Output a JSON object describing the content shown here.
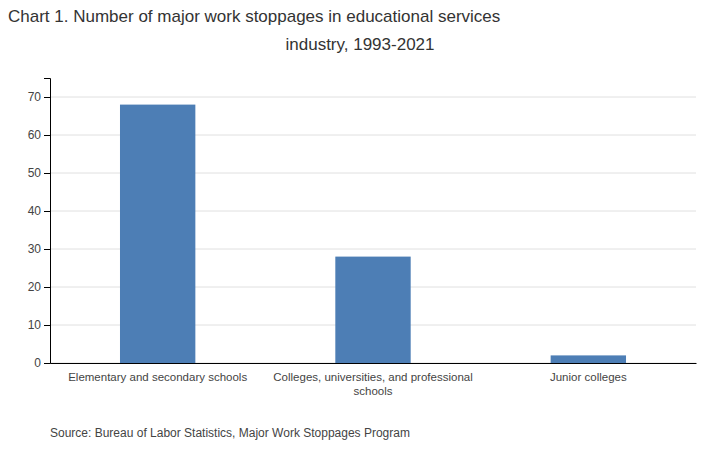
{
  "chart_data": {
    "type": "bar",
    "title": "Chart 1. Number of major work stoppages in educational services",
    "subtitle": "industry, 1993-2021",
    "categories": [
      "Elementary and secondary schools",
      "Colleges, universities, and professional\nschools",
      "Junior colleges"
    ],
    "values": [
      68,
      28,
      2
    ],
    "color": "#4d7eb5",
    "ylim": [
      0,
      75
    ],
    "yticks": [
      0,
      10,
      20,
      30,
      40,
      50,
      60,
      70
    ],
    "grid": true,
    "annotations": [
      "Source: Bureau of Labor Statistics, Major Work Stoppages Program"
    ]
  }
}
